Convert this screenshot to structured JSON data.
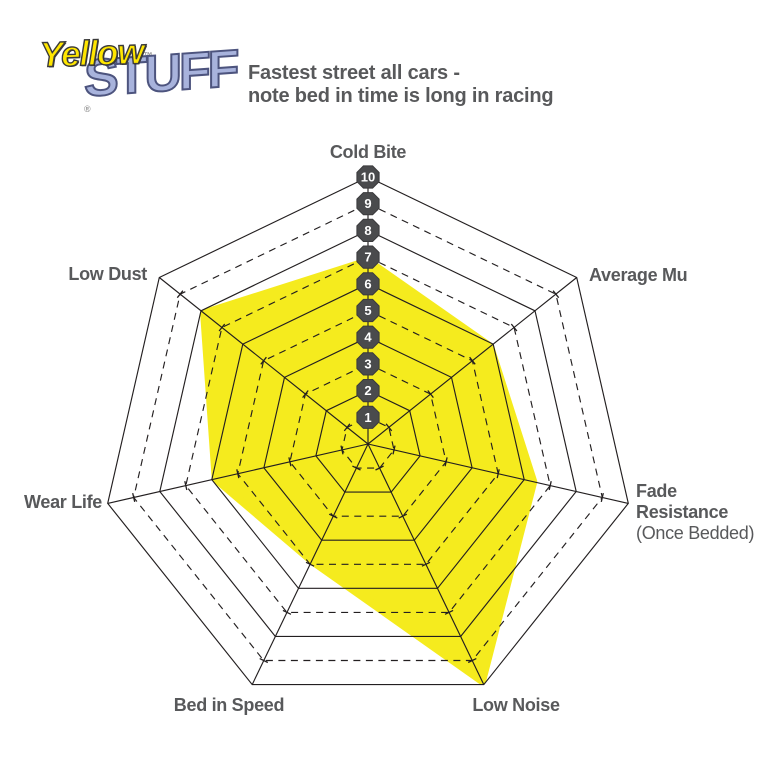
{
  "logo": {
    "word1": "Yellow",
    "word1_mark": "™",
    "word2": "STUFF",
    "word2_mark": "®"
  },
  "title": {
    "line1": "Fastest street all cars -",
    "line2": "note bed in time is long in racing"
  },
  "chart_data": {
    "type": "radar",
    "title": "Fastest street all cars - note bed in time is long in racing",
    "categories": [
      "Cold Bite",
      "Average Mu",
      "Fade Resistance",
      "Low Noise",
      "Bed in Speed",
      "Wear Life",
      "Low Dust"
    ],
    "values": [
      7,
      6,
      6.5,
      10,
      5,
      6,
      8
    ],
    "axis_labels": [
      [
        "Cold Bite"
      ],
      [
        "Average Mu"
      ],
      [
        "Fade",
        "Resistance",
        "(Once Bedded)"
      ],
      [
        "Low Noise"
      ],
      [
        "Bed in Speed"
      ],
      [
        "Wear Life"
      ],
      [
        "Low Dust"
      ]
    ],
    "scale": {
      "min": 0,
      "max": 10,
      "tick_labels": [
        "1",
        "2",
        "3",
        "4",
        "5",
        "6",
        "7",
        "8",
        "9",
        "10"
      ]
    },
    "grid": {
      "rings": 10,
      "solid_rings": "even",
      "dashed_rings": "odd",
      "spokes": 7,
      "legend": "none"
    },
    "colors": {
      "fill": "#F5EB1E",
      "grid_line": "#231F20",
      "label": "#58595B",
      "badge_bg": "#4A4B4D",
      "badge_text": "#FFFFFF"
    }
  }
}
